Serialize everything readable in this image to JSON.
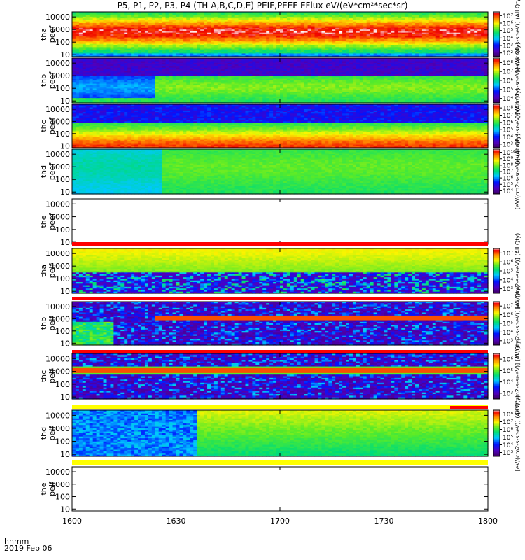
{
  "chart_data": {
    "type": "heatmap",
    "title": "P5, P1, P2, P3, P4 (TH-A,B,C,D,E) PEIF,PEEF EFlux eV/(eV*cm²*sec*sr)",
    "x_ticks": [
      "1600",
      "1630",
      "1700",
      "1730",
      "1800"
    ],
    "x_unit_label": "hhmm",
    "date_label": "2019 Feb 06",
    "y_ticks": [
      "10",
      "100",
      "1000",
      "10000"
    ],
    "ylim": [
      7,
      25000
    ],
    "y_scale": "log",
    "colormap": "rainbow (purple → blue → cyan → green → yellow → red → white)",
    "panels": [
      {
        "label": [
          "tha",
          "peef"
        ],
        "empty": false,
        "colorbar_ticks": [
          "10²",
          "10³",
          "10⁴",
          "10⁵",
          "10⁶",
          "10⁷"
        ],
        "colorbar_label": "[eV/(cm2-s-sr-eV)] (All Qty)"
      },
      {
        "label": [
          "thb",
          "peef"
        ],
        "empty": false,
        "colorbar_ticks": [
          "10⁴",
          "10⁵",
          "10⁶",
          "10⁷",
          "10⁸"
        ],
        "colorbar_label": "[eV/(cm2-s-sr-eV)] (All Qty)"
      },
      {
        "label": [
          "thc",
          "peef"
        ],
        "empty": false,
        "colorbar_ticks": [
          "10³",
          "10⁴",
          "10⁵",
          "10⁶",
          "10⁷",
          "10⁸"
        ],
        "colorbar_label": "[eV/(cm2-s-sr-eV)] (All Qty)"
      },
      {
        "label": [
          "thd",
          "peef"
        ],
        "empty": false,
        "colorbar_ticks": [
          "10⁴",
          "10⁵",
          "10⁶",
          "10⁷",
          "10⁸",
          "10⁹",
          "10¹⁰"
        ],
        "colorbar_label": "[eV/(cm2-s-sr-eV)] (All Qty)"
      },
      {
        "label": [
          "the",
          "peef"
        ],
        "empty": true
      },
      {
        "label": [
          "tha",
          "peif"
        ],
        "empty": false,
        "colorbar_ticks": [
          "10³",
          "10⁴",
          "10⁵",
          "10⁶",
          "10⁷"
        ],
        "colorbar_label": "[eV/(cm2-s-sr-eV)] (All Qty)"
      },
      {
        "label": [
          "thb",
          "peif"
        ],
        "empty": false,
        "colorbar_ticks": [
          "10³",
          "10⁴",
          "10⁵",
          "10⁶",
          "10⁷"
        ],
        "colorbar_label": "[eV/(cm2-s-sr-eV)] (All Qty)"
      },
      {
        "label": [
          "thc",
          "peif"
        ],
        "empty": false,
        "colorbar_ticks": [
          "10³",
          "10⁴",
          "10⁵",
          "10⁶"
        ],
        "colorbar_label": "[eV/(cm2-s-sr-eV)] (All Qty)"
      },
      {
        "label": [
          "thd",
          "peif"
        ],
        "empty": false,
        "colorbar_ticks": [
          "10³",
          "10⁴",
          "10⁵",
          "10⁶",
          "10⁷",
          "10⁸"
        ],
        "colorbar_label": "[eV/(cm2-s-sr-eV)] (All Qty)"
      },
      {
        "label": [
          "the",
          "peif"
        ],
        "empty": true
      }
    ]
  }
}
